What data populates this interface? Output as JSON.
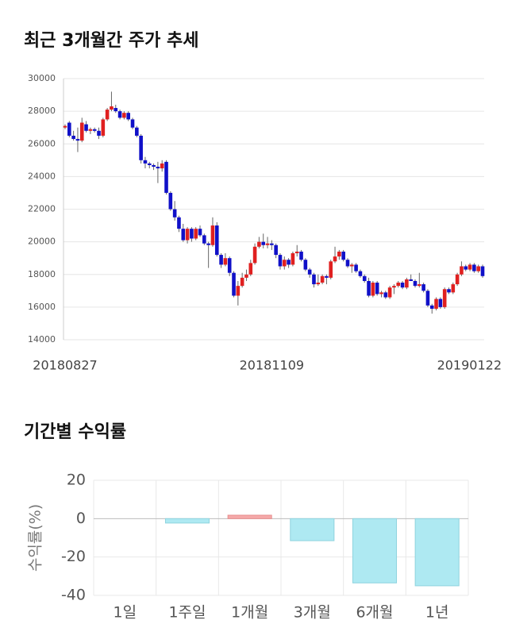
{
  "chart_data": [
    {
      "type": "candlestick",
      "title": "최근 3개월간 주가 추세",
      "up_color": "#e02020",
      "down_color": "#1010c8",
      "grid": true,
      "ylim": [
        14000,
        30000
      ],
      "yticks": [
        14000,
        16000,
        18000,
        20000,
        22000,
        24000,
        26000,
        28000,
        30000
      ],
      "categories": [
        "20180827",
        null,
        null,
        null,
        null,
        null,
        null,
        null,
        null,
        null,
        null,
        null,
        null,
        null,
        null,
        null,
        null,
        null,
        null,
        null,
        null,
        null,
        null,
        null,
        null,
        null,
        null,
        null,
        null,
        null,
        null,
        null,
        null,
        null,
        null,
        null,
        null,
        null,
        null,
        null,
        null,
        null,
        null,
        null,
        null,
        null,
        null,
        null,
        null,
        "20181109",
        null,
        null,
        null,
        null,
        null,
        null,
        null,
        null,
        null,
        null,
        null,
        null,
        null,
        null,
        null,
        null,
        null,
        null,
        null,
        null,
        null,
        null,
        null,
        null,
        null,
        null,
        null,
        null,
        null,
        null,
        null,
        null,
        null,
        null,
        null,
        null,
        null,
        null,
        null,
        null,
        null,
        null,
        null,
        null,
        null,
        null,
        null,
        null,
        null,
        "20190122"
      ],
      "values": [
        [
          27000,
          27200,
          26900,
          27100
        ],
        [
          27300,
          27400,
          26400,
          26500
        ],
        [
          26500,
          26800,
          26200,
          26300
        ],
        [
          26300,
          27000,
          25500,
          26200
        ],
        [
          26200,
          27600,
          26100,
          27300
        ],
        [
          27200,
          27400,
          26700,
          26800
        ],
        [
          26800,
          27000,
          26600,
          26900
        ],
        [
          26900,
          27000,
          26700,
          26800
        ],
        [
          26800,
          27000,
          26300,
          26500
        ],
        [
          26500,
          27600,
          26400,
          27500
        ],
        [
          27500,
          28200,
          27400,
          28100
        ],
        [
          28100,
          29200,
          28000,
          28300
        ],
        [
          28200,
          28400,
          27900,
          28000
        ],
        [
          28000,
          28100,
          27500,
          27600
        ],
        [
          27600,
          28000,
          27500,
          27900
        ],
        [
          27900,
          28000,
          27400,
          27500
        ],
        [
          27500,
          27600,
          26900,
          27000
        ],
        [
          27000,
          27100,
          26400,
          26500
        ],
        [
          26500,
          26600,
          24800,
          25000
        ],
        [
          25000,
          25200,
          24500,
          24800
        ],
        [
          24800,
          24900,
          24500,
          24700
        ],
        [
          24700,
          24800,
          24400,
          24600
        ],
        [
          24600,
          24900,
          23600,
          24500
        ],
        [
          24500,
          25000,
          24300,
          24800
        ],
        [
          24900,
          25000,
          22900,
          23000
        ],
        [
          23000,
          23100,
          21900,
          22000
        ],
        [
          22000,
          22500,
          21300,
          21500
        ],
        [
          21500,
          21600,
          20600,
          20800
        ],
        [
          20800,
          21100,
          20000,
          20100
        ],
        [
          20100,
          20900,
          19900,
          20800
        ],
        [
          20800,
          20900,
          20000,
          20200
        ],
        [
          20200,
          20900,
          20100,
          20800
        ],
        [
          20800,
          21000,
          20300,
          20400
        ],
        [
          20400,
          20500,
          19800,
          19900
        ],
        [
          19900,
          20000,
          18400,
          19800
        ],
        [
          19800,
          21500,
          19700,
          21000
        ],
        [
          21000,
          21200,
          19100,
          19200
        ],
        [
          19200,
          19300,
          18400,
          18600
        ],
        [
          18600,
          19300,
          18500,
          19000
        ],
        [
          19000,
          19100,
          17900,
          18100
        ],
        [
          18100,
          18200,
          16600,
          16700
        ],
        [
          16700,
          17600,
          16100,
          17300
        ],
        [
          17300,
          18100,
          17200,
          17800
        ],
        [
          17800,
          18300,
          17600,
          18000
        ],
        [
          18000,
          18900,
          17900,
          18700
        ],
        [
          18700,
          19900,
          18600,
          19700
        ],
        [
          19700,
          20300,
          19600,
          20000
        ],
        [
          20000,
          20500,
          19600,
          19800
        ],
        [
          19800,
          20300,
          19600,
          19900
        ],
        [
          19900,
          20100,
          19500,
          19800
        ],
        [
          19800,
          19900,
          19000,
          19200
        ],
        [
          19200,
          19300,
          18300,
          18500
        ],
        [
          18500,
          19100,
          18300,
          18900
        ],
        [
          18900,
          19000,
          18400,
          18600
        ],
        [
          18600,
          19400,
          18500,
          19300
        ],
        [
          19300,
          19800,
          19100,
          19400
        ],
        [
          19400,
          19500,
          18800,
          18900
        ],
        [
          18900,
          19000,
          18200,
          18300
        ],
        [
          18300,
          18400,
          17800,
          18000
        ],
        [
          18000,
          18100,
          17200,
          17400
        ],
        [
          17400,
          18000,
          17300,
          17500
        ],
        [
          17500,
          18000,
          17400,
          17900
        ],
        [
          17900,
          18000,
          17400,
          17800
        ],
        [
          17800,
          18900,
          17700,
          18800
        ],
        [
          18800,
          19700,
          18700,
          19100
        ],
        [
          19100,
          19500,
          18900,
          19400
        ],
        [
          19400,
          19500,
          18800,
          18900
        ],
        [
          18900,
          19000,
          18400,
          18500
        ],
        [
          18500,
          18700,
          18100,
          18600
        ],
        [
          18600,
          18700,
          18100,
          18200
        ],
        [
          18200,
          18300,
          17800,
          17900
        ],
        [
          17900,
          18000,
          17500,
          17600
        ],
        [
          17600,
          17800,
          16600,
          16700
        ],
        [
          16700,
          17600,
          16600,
          17500
        ],
        [
          17500,
          17600,
          16700,
          16800
        ],
        [
          16800,
          17000,
          16600,
          16900
        ],
        [
          16900,
          17000,
          16500,
          16600
        ],
        [
          16600,
          17300,
          16500,
          17200
        ],
        [
          17200,
          17400,
          16800,
          17300
        ],
        [
          17300,
          17600,
          17200,
          17500
        ],
        [
          17500,
          17600,
          17100,
          17200
        ],
        [
          17200,
          17800,
          17100,
          17700
        ],
        [
          17700,
          18000,
          17600,
          17600
        ],
        [
          17600,
          17700,
          17200,
          17300
        ],
        [
          17300,
          18100,
          17200,
          17400
        ],
        [
          17400,
          17500,
          16900,
          17000
        ],
        [
          17000,
          17100,
          16000,
          16100
        ],
        [
          16100,
          16200,
          15600,
          15900
        ],
        [
          15900,
          16600,
          15800,
          16500
        ],
        [
          16500,
          16600,
          15900,
          16000
        ],
        [
          16000,
          17200,
          15900,
          17100
        ],
        [
          17100,
          17200,
          16800,
          16900
        ],
        [
          16900,
          17500,
          16800,
          17400
        ],
        [
          17400,
          18100,
          17300,
          18000
        ],
        [
          18000,
          18800,
          17900,
          18500
        ],
        [
          18500,
          18600,
          18200,
          18300
        ],
        [
          18300,
          18700,
          18200,
          18600
        ],
        [
          18600,
          18700,
          18100,
          18200
        ],
        [
          18200,
          18600,
          18100,
          18500
        ],
        [
          18500,
          18600,
          17800,
          17900
        ]
      ]
    },
    {
      "type": "bar",
      "title": "기간별 수익률",
      "y_label": "수익률(%)",
      "categories": [
        "1일",
        "1주일",
        "1개월",
        "3개월",
        "6개월",
        "1년"
      ],
      "values": [
        0,
        -2.3,
        1.8,
        -11.5,
        -33.5,
        -35
      ],
      "positive_color": "#f5a9a9",
      "negative_color": "#aee9f2",
      "ylim": [
        -40,
        20
      ],
      "yticks": [
        -40,
        -20,
        0,
        20
      ],
      "grid": true
    }
  ]
}
